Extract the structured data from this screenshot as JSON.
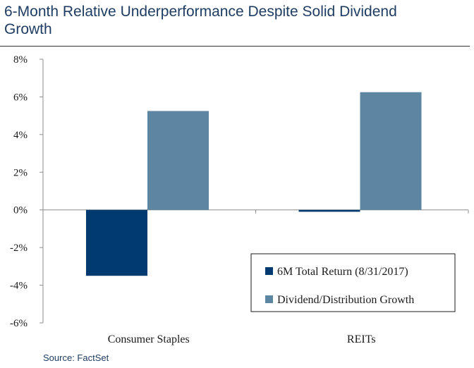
{
  "title": "6-Month Relative Underperformance Despite Solid Dividend Growth",
  "source": "Source: FactSet",
  "chart_data": {
    "type": "bar",
    "categories": [
      "Consumer Staples",
      "REITs"
    ],
    "series": [
      {
        "name": "6M Total Return (8/31/2017)",
        "values": [
          -3.5,
          -0.1
        ],
        "color": "#003a70"
      },
      {
        "name": "Dividend/Distribution Growth",
        "values": [
          5.25,
          6.25
        ],
        "color": "#5d86a3"
      }
    ],
    "y_ticks": [
      "8%",
      "6%",
      "4%",
      "2%",
      "0%",
      "-2%",
      "-4%",
      "-6%"
    ],
    "ylim": [
      -6,
      8
    ],
    "grid": false,
    "legend_position": "bottom-right"
  }
}
